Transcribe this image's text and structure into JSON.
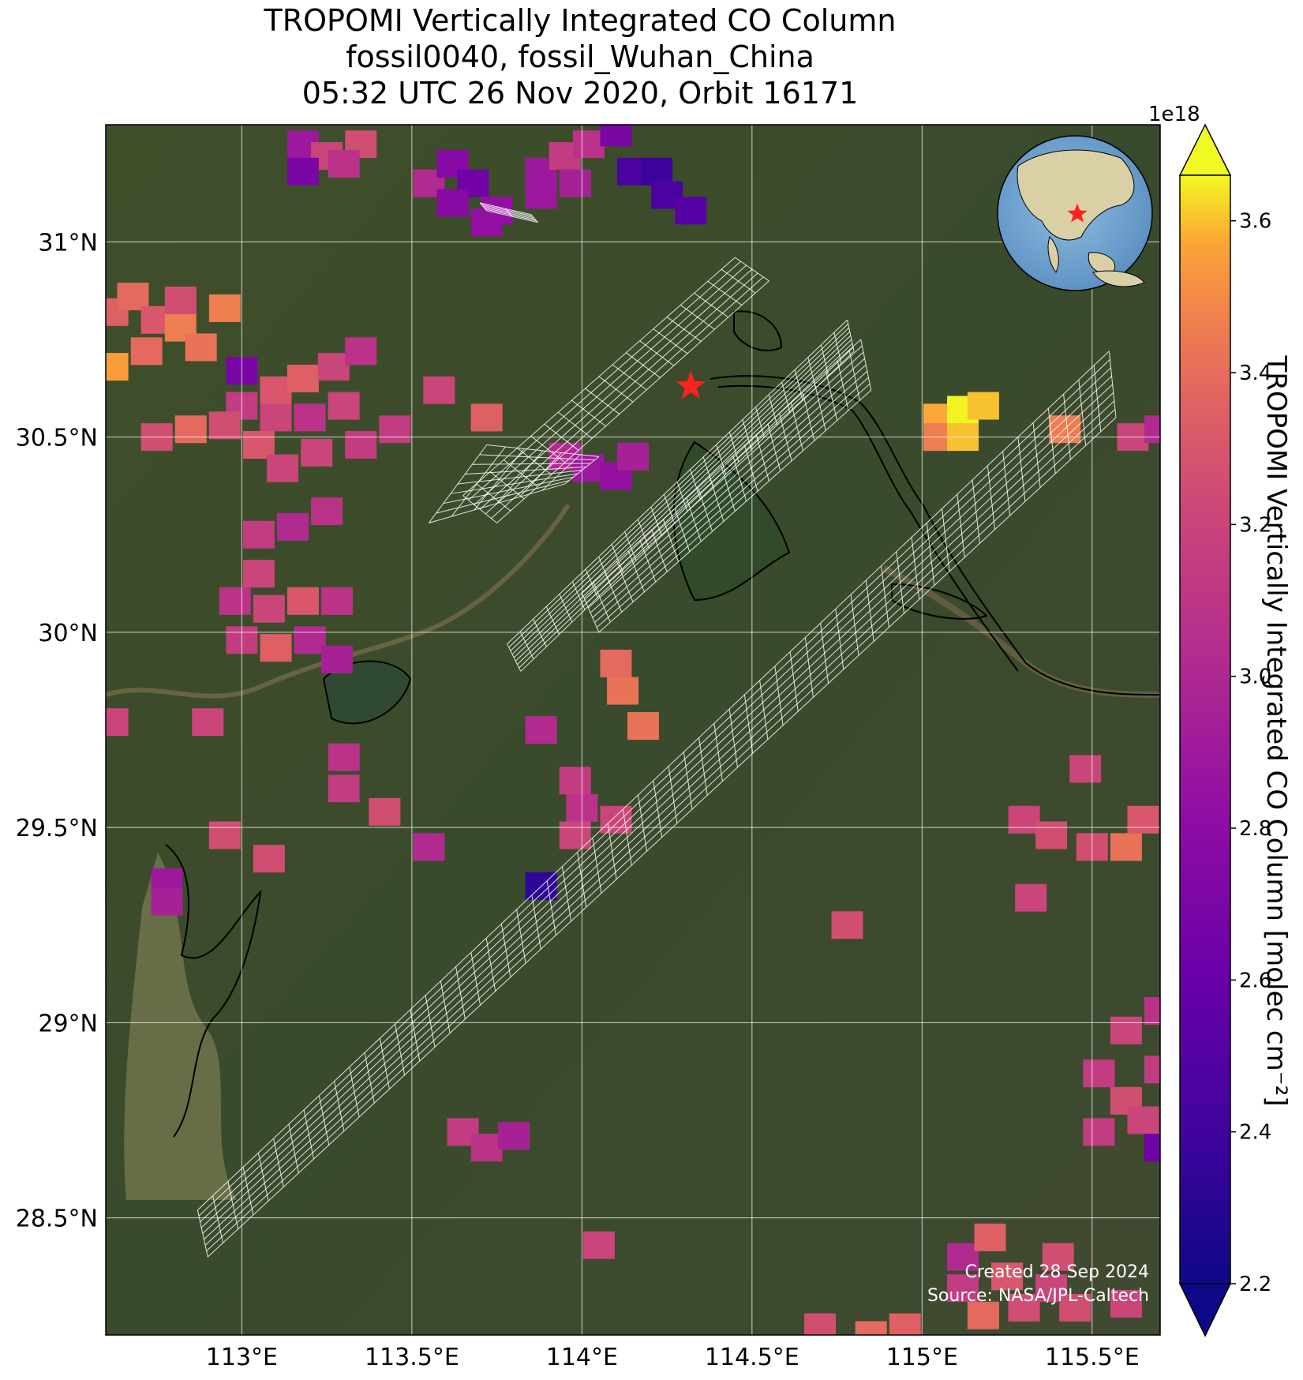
{
  "title": {
    "line1": "TROPOMI Vertically Integrated CO Column",
    "line2": "fossil0040, fossil_Wuhan_China",
    "line3": "05:32 UTC 26 Nov 2020, Orbit 16171"
  },
  "colors": {
    "background_land": "#3d4a2a",
    "grid": "#ffffff",
    "target_star": "#ff2020",
    "footprint": "#ffffff"
  },
  "colormap": "plasma",
  "chart_data": {
    "type": "heatmap",
    "projection": "map",
    "lon_range": [
      112.6,
      115.7
    ],
    "lat_range": [
      28.2,
      31.3
    ],
    "x_ticks": [
      "113°E",
      "113.5°E",
      "114°E",
      "114.5°E",
      "115°E",
      "115.5°E"
    ],
    "x_tick_values": [
      113.0,
      113.5,
      114.0,
      114.5,
      115.0,
      115.5
    ],
    "y_ticks": [
      "28.5°N",
      "29°N",
      "29.5°N",
      "30°N",
      "30.5°N",
      "31°N"
    ],
    "y_tick_values": [
      28.5,
      29.0,
      29.5,
      30.0,
      30.5,
      31.0
    ],
    "grid": true,
    "target": {
      "name": "fossil_Wuhan_China",
      "lon": 114.32,
      "lat": 30.63,
      "marker": "star"
    },
    "colorbar": {
      "label": "TROPOMI Vertically Integrated CO Column [molec cm⁻²]",
      "exponent": "1e18",
      "min": 2.2,
      "max": 3.66,
      "ticks": [
        "2.2",
        "2.4",
        "2.6",
        "2.8",
        "3.0",
        "3.2",
        "3.4",
        "3.6"
      ],
      "tick_values": [
        2.2,
        2.4,
        2.6,
        2.8,
        3.0,
        3.2,
        3.4,
        3.6
      ],
      "extend": "both"
    },
    "pixels": [
      {
        "lon": 112.62,
        "lat": 30.82,
        "v": 3.15
      },
      {
        "lon": 112.68,
        "lat": 30.86,
        "v": 3.2
      },
      {
        "lon": 112.75,
        "lat": 30.8,
        "v": 3.1
      },
      {
        "lon": 112.82,
        "lat": 30.78,
        "v": 3.3
      },
      {
        "lon": 112.88,
        "lat": 30.73,
        "v": 3.25
      },
      {
        "lon": 112.62,
        "lat": 30.68,
        "v": 3.45
      },
      {
        "lon": 112.72,
        "lat": 30.72,
        "v": 3.2
      },
      {
        "lon": 112.95,
        "lat": 30.83,
        "v": 3.3
      },
      {
        "lon": 112.82,
        "lat": 30.85,
        "v": 3.05
      },
      {
        "lon": 113.0,
        "lat": 30.67,
        "v": 2.6
      },
      {
        "lon": 113.1,
        "lat": 30.62,
        "v": 3.1
      },
      {
        "lon": 113.18,
        "lat": 30.65,
        "v": 3.15
      },
      {
        "lon": 113.27,
        "lat": 30.68,
        "v": 3.0
      },
      {
        "lon": 113.35,
        "lat": 30.72,
        "v": 2.9
      },
      {
        "lon": 113.0,
        "lat": 30.58,
        "v": 2.95
      },
      {
        "lon": 113.1,
        "lat": 30.55,
        "v": 3.0
      },
      {
        "lon": 112.95,
        "lat": 30.53,
        "v": 3.05
      },
      {
        "lon": 112.85,
        "lat": 30.52,
        "v": 3.2
      },
      {
        "lon": 112.75,
        "lat": 30.5,
        "v": 3.05
      },
      {
        "lon": 113.05,
        "lat": 30.48,
        "v": 3.1
      },
      {
        "lon": 113.2,
        "lat": 30.55,
        "v": 2.9
      },
      {
        "lon": 113.3,
        "lat": 30.58,
        "v": 3.0
      },
      {
        "lon": 113.22,
        "lat": 30.46,
        "v": 3.0
      },
      {
        "lon": 113.35,
        "lat": 30.48,
        "v": 2.95
      },
      {
        "lon": 113.45,
        "lat": 30.52,
        "v": 2.95
      },
      {
        "lon": 113.12,
        "lat": 30.42,
        "v": 3.0
      },
      {
        "lon": 113.58,
        "lat": 30.62,
        "v": 3.0
      },
      {
        "lon": 113.72,
        "lat": 30.55,
        "v": 3.15
      },
      {
        "lon": 113.05,
        "lat": 30.25,
        "v": 2.95
      },
      {
        "lon": 113.15,
        "lat": 30.27,
        "v": 2.85
      },
      {
        "lon": 113.25,
        "lat": 30.31,
        "v": 2.9
      },
      {
        "lon": 113.05,
        "lat": 30.15,
        "v": 3.0
      },
      {
        "lon": 112.98,
        "lat": 30.08,
        "v": 2.9
      },
      {
        "lon": 113.08,
        "lat": 30.06,
        "v": 3.0
      },
      {
        "lon": 113.18,
        "lat": 30.08,
        "v": 3.1
      },
      {
        "lon": 113.28,
        "lat": 30.08,
        "v": 2.9
      },
      {
        "lon": 113.0,
        "lat": 29.98,
        "v": 2.95
      },
      {
        "lon": 113.1,
        "lat": 29.96,
        "v": 3.15
      },
      {
        "lon": 113.2,
        "lat": 29.98,
        "v": 2.85
      },
      {
        "lon": 113.28,
        "lat": 29.93,
        "v": 2.8
      },
      {
        "lon": 112.62,
        "lat": 29.77,
        "v": 3.0
      },
      {
        "lon": 112.9,
        "lat": 29.77,
        "v": 3.0
      },
      {
        "lon": 113.3,
        "lat": 29.68,
        "v": 2.9
      },
      {
        "lon": 113.3,
        "lat": 29.6,
        "v": 2.95
      },
      {
        "lon": 113.42,
        "lat": 29.54,
        "v": 3.05
      },
      {
        "lon": 112.95,
        "lat": 29.48,
        "v": 3.05
      },
      {
        "lon": 113.08,
        "lat": 29.42,
        "v": 3.05
      },
      {
        "lon": 112.78,
        "lat": 29.36,
        "v": 2.75
      },
      {
        "lon": 112.78,
        "lat": 29.31,
        "v": 2.8
      },
      {
        "lon": 113.55,
        "lat": 29.45,
        "v": 2.85
      },
      {
        "lon": 113.88,
        "lat": 29.75,
        "v": 2.85
      },
      {
        "lon": 113.98,
        "lat": 29.62,
        "v": 2.95
      },
      {
        "lon": 114.0,
        "lat": 29.55,
        "v": 2.9
      },
      {
        "lon": 113.98,
        "lat": 29.48,
        "v": 3.0
      },
      {
        "lon": 114.1,
        "lat": 29.52,
        "v": 3.0
      },
      {
        "lon": 113.88,
        "lat": 29.35,
        "v": 2.3
      },
      {
        "lon": 114.1,
        "lat": 29.92,
        "v": 3.2
      },
      {
        "lon": 114.12,
        "lat": 29.85,
        "v": 3.25
      },
      {
        "lon": 114.18,
        "lat": 29.76,
        "v": 3.25
      },
      {
        "lon": 113.95,
        "lat": 30.45,
        "v": 2.85
      },
      {
        "lon": 114.02,
        "lat": 30.42,
        "v": 2.75
      },
      {
        "lon": 114.1,
        "lat": 30.4,
        "v": 2.7
      },
      {
        "lon": 114.15,
        "lat": 30.45,
        "v": 2.8
      },
      {
        "lon": 115.05,
        "lat": 30.55,
        "v": 3.5
      },
      {
        "lon": 115.12,
        "lat": 30.57,
        "v": 3.65
      },
      {
        "lon": 115.18,
        "lat": 30.58,
        "v": 3.55
      },
      {
        "lon": 115.05,
        "lat": 30.5,
        "v": 3.3
      },
      {
        "lon": 115.12,
        "lat": 30.5,
        "v": 3.55
      },
      {
        "lon": 115.42,
        "lat": 30.52,
        "v": 3.3
      },
      {
        "lon": 115.62,
        "lat": 30.5,
        "v": 3.0
      },
      {
        "lon": 115.7,
        "lat": 30.52,
        "v": 2.85
      },
      {
        "lon": 115.48,
        "lat": 29.65,
        "v": 3.0
      },
      {
        "lon": 115.3,
        "lat": 29.52,
        "v": 3.0
      },
      {
        "lon": 115.38,
        "lat": 29.48,
        "v": 3.05
      },
      {
        "lon": 115.5,
        "lat": 29.45,
        "v": 3.05
      },
      {
        "lon": 115.6,
        "lat": 29.45,
        "v": 3.25
      },
      {
        "lon": 115.65,
        "lat": 29.52,
        "v": 3.1
      },
      {
        "lon": 115.32,
        "lat": 29.32,
        "v": 3.0
      },
      {
        "lon": 114.78,
        "lat": 29.25,
        "v": 3.05
      },
      {
        "lon": 115.6,
        "lat": 28.98,
        "v": 3.0
      },
      {
        "lon": 115.52,
        "lat": 28.87,
        "v": 2.95
      },
      {
        "lon": 115.6,
        "lat": 28.8,
        "v": 3.05
      },
      {
        "lon": 115.52,
        "lat": 28.72,
        "v": 2.95
      },
      {
        "lon": 115.65,
        "lat": 28.75,
        "v": 3.0
      },
      {
        "lon": 115.7,
        "lat": 28.88,
        "v": 2.95
      },
      {
        "lon": 115.7,
        "lat": 29.03,
        "v": 2.9
      },
      {
        "lon": 115.7,
        "lat": 28.68,
        "v": 2.55
      },
      {
        "lon": 113.65,
        "lat": 28.72,
        "v": 2.95
      },
      {
        "lon": 113.72,
        "lat": 28.68,
        "v": 2.9
      },
      {
        "lon": 113.8,
        "lat": 28.71,
        "v": 2.8
      },
      {
        "lon": 114.05,
        "lat": 28.43,
        "v": 3.0
      },
      {
        "lon": 115.12,
        "lat": 28.4,
        "v": 2.85
      },
      {
        "lon": 115.12,
        "lat": 28.32,
        "v": 2.95
      },
      {
        "lon": 115.2,
        "lat": 28.45,
        "v": 3.15
      },
      {
        "lon": 115.25,
        "lat": 28.35,
        "v": 3.1
      },
      {
        "lon": 115.3,
        "lat": 28.27,
        "v": 3.05
      },
      {
        "lon": 115.38,
        "lat": 28.32,
        "v": 3.0
      },
      {
        "lon": 115.4,
        "lat": 28.4,
        "v": 3.05
      },
      {
        "lon": 115.45,
        "lat": 28.27,
        "v": 3.05
      },
      {
        "lon": 115.6,
        "lat": 28.28,
        "v": 3.0
      },
      {
        "lon": 115.18,
        "lat": 28.25,
        "v": 3.2
      },
      {
        "lon": 114.85,
        "lat": 28.2,
        "v": 3.2
      },
      {
        "lon": 114.95,
        "lat": 28.22,
        "v": 3.15
      },
      {
        "lon": 114.7,
        "lat": 28.22,
        "v": 3.05
      },
      {
        "lon": 113.18,
        "lat": 31.25,
        "v": 2.75
      },
      {
        "lon": 113.25,
        "lat": 31.22,
        "v": 3.0
      },
      {
        "lon": 113.35,
        "lat": 31.25,
        "v": 3.05
      },
      {
        "lon": 113.18,
        "lat": 31.18,
        "v": 2.6
      },
      {
        "lon": 113.3,
        "lat": 31.2,
        "v": 2.9
      },
      {
        "lon": 113.55,
        "lat": 31.15,
        "v": 2.85
      },
      {
        "lon": 113.62,
        "lat": 31.2,
        "v": 2.65
      },
      {
        "lon": 113.68,
        "lat": 31.15,
        "v": 2.55
      },
      {
        "lon": 113.75,
        "lat": 31.08,
        "v": 2.7
      },
      {
        "lon": 113.62,
        "lat": 31.1,
        "v": 2.65
      },
      {
        "lon": 113.72,
        "lat": 31.05,
        "v": 2.7
      },
      {
        "lon": 113.88,
        "lat": 31.18,
        "v": 2.75
      },
      {
        "lon": 113.95,
        "lat": 31.22,
        "v": 2.95
      },
      {
        "lon": 114.02,
        "lat": 31.25,
        "v": 2.9
      },
      {
        "lon": 113.98,
        "lat": 31.15,
        "v": 2.8
      },
      {
        "lon": 113.88,
        "lat": 31.12,
        "v": 2.75
      },
      {
        "lon": 114.15,
        "lat": 31.18,
        "v": 2.4
      },
      {
        "lon": 114.22,
        "lat": 31.18,
        "v": 2.35
      },
      {
        "lon": 114.25,
        "lat": 31.12,
        "v": 2.4
      },
      {
        "lon": 114.32,
        "lat": 31.08,
        "v": 2.45
      },
      {
        "lon": 114.1,
        "lat": 31.28,
        "v": 2.6
      }
    ],
    "footprints": [
      {
        "corners": [
          [
            112.87,
            28.52
          ],
          [
            112.9,
            28.4
          ],
          [
            115.57,
            30.55
          ],
          [
            115.55,
            30.72
          ]
        ],
        "rows": 60,
        "cols": 8
      },
      {
        "corners": [
          [
            113.65,
            30.35
          ],
          [
            113.75,
            30.28
          ],
          [
            114.55,
            30.9
          ],
          [
            114.45,
            30.96
          ]
        ],
        "rows": 20,
        "cols": 6
      },
      {
        "corners": [
          [
            113.55,
            30.28
          ],
          [
            113.95,
            30.38
          ],
          [
            114.05,
            30.45
          ],
          [
            113.72,
            30.48
          ]
        ],
        "rows": 8,
        "cols": 6
      },
      {
        "corners": [
          [
            114.0,
            30.1
          ],
          [
            114.05,
            30.0
          ],
          [
            114.85,
            30.62
          ],
          [
            114.82,
            30.75
          ]
        ],
        "rows": 24,
        "cols": 8
      },
      {
        "corners": [
          [
            113.78,
            29.97
          ],
          [
            113.82,
            29.9
          ],
          [
            114.8,
            30.72
          ],
          [
            114.78,
            30.8
          ]
        ],
        "rows": 26,
        "cols": 8
      },
      {
        "corners": [
          [
            113.7,
            31.1
          ],
          [
            113.72,
            31.08
          ],
          [
            113.87,
            31.05
          ],
          [
            113.85,
            31.07
          ]
        ],
        "rows": 2,
        "cols": 5
      }
    ],
    "inset_globe": {
      "target_marker": "star"
    }
  },
  "credits": {
    "line1": "Created 28 Sep 2024",
    "line2": "Source: NASA/JPL-Caltech"
  }
}
